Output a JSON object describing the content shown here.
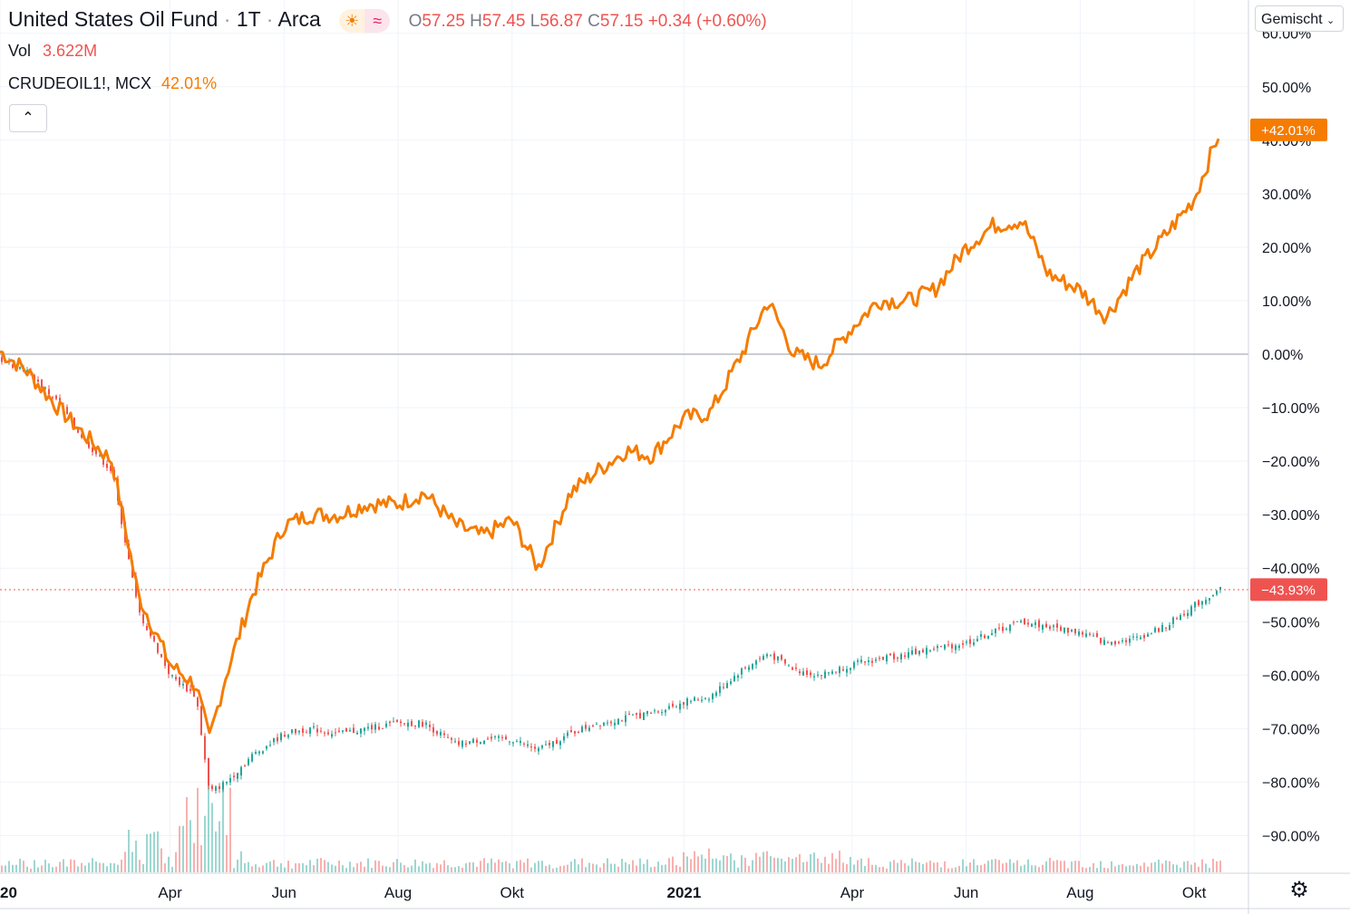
{
  "legend": {
    "symbol": "United States Oil Fund",
    "interval": "1T",
    "exchange": "Arca",
    "open_label": "O",
    "open": "57.25",
    "high_label": "H",
    "high": "57.45",
    "low_label": "L",
    "low": "56.87",
    "close_label": "C",
    "close": "57.15",
    "change": "+0.34 (+0.60%)",
    "vol_label": "Vol",
    "vol_value": "3.622M",
    "compare_symbol": "CRUDEOIL1!, MCX",
    "compare_value": "42.01%"
  },
  "toolbar": {
    "scale_mode": "Gemischt",
    "collapse_icon": "chevron-up-icon",
    "settings_icon": "gear-icon"
  },
  "colors": {
    "compare_line": "#f57c00",
    "up": "#26a69a",
    "down": "#ef5350",
    "zero_line": "#9598a1"
  },
  "chart_data": {
    "type": "line",
    "x": [
      "2020-01-01",
      "2020-01-15",
      "2020-02-01",
      "2020-02-15",
      "2020-03-01",
      "2020-03-15",
      "2020-04-01",
      "2020-04-15",
      "2020-04-22",
      "2020-05-01",
      "2020-05-15",
      "2020-06-01",
      "2020-06-15",
      "2020-07-01",
      "2020-07-15",
      "2020-08-01",
      "2020-08-15",
      "2020-09-01",
      "2020-09-15",
      "2020-10-01",
      "2020-10-15",
      "2020-11-01",
      "2020-11-15",
      "2020-12-01",
      "2020-12-15",
      "2021-01-01",
      "2021-01-15",
      "2021-02-01",
      "2021-02-15",
      "2021-03-01",
      "2021-03-15",
      "2021-04-01",
      "2021-04-15",
      "2021-05-01",
      "2021-05-15",
      "2021-06-01",
      "2021-06-15",
      "2021-07-01",
      "2021-07-15",
      "2021-08-01",
      "2021-08-15",
      "2021-09-01",
      "2021-09-15",
      "2021-10-01",
      "2021-10-15"
    ],
    "series": [
      {
        "name": "CRUDEOIL1!, MCX",
        "values": [
          0.5,
          -3,
          -10,
          -15,
          -20,
          -45,
          -58,
          -62,
          -72,
          -60,
          -45,
          -32,
          -30,
          -30,
          -28,
          -28,
          -26,
          -32,
          -34,
          -31,
          -40,
          -26,
          -22,
          -18,
          -19,
          -12,
          -11,
          0,
          10,
          0,
          -2,
          5,
          10,
          10,
          12,
          20,
          24,
          25,
          15,
          12,
          7,
          16,
          22,
          29,
          42
        ]
      },
      {
        "name": "United States Oil Fund",
        "values": [
          -1,
          -3,
          -9,
          -16,
          -22,
          -48,
          -60,
          -64,
          -82,
          -80,
          -75,
          -71,
          -70,
          -71,
          -70,
          -69,
          -69,
          -73,
          -72,
          -72,
          -74,
          -71,
          -69,
          -68,
          -67,
          -65,
          -64,
          -59,
          -56,
          -59,
          -60,
          -58,
          -57,
          -56,
          -55,
          -54,
          -52,
          -50,
          -51,
          -52,
          -54,
          -53,
          -51,
          -47,
          -43.93
        ]
      }
    ],
    "y_ticks": [
      "60.00%",
      "50.00%",
      "40.00%",
      "30.00%",
      "20.00%",
      "10.00%",
      "0.00%",
      "−10.00%",
      "−20.00%",
      "−30.00%",
      "−40.00%",
      "−50.00%",
      "−60.00%",
      "−70.00%",
      "−80.00%",
      "−90.00%"
    ],
    "x_tick_labels": [
      "2020",
      "Apr",
      "Jun",
      "Aug",
      "Okt",
      "2021",
      "Apr",
      "Jun",
      "Aug",
      "Okt"
    ],
    "last_value_labels": [
      "+42.01%",
      "−43.93%"
    ],
    "ylim": [
      -93,
      60
    ],
    "grid": true
  }
}
